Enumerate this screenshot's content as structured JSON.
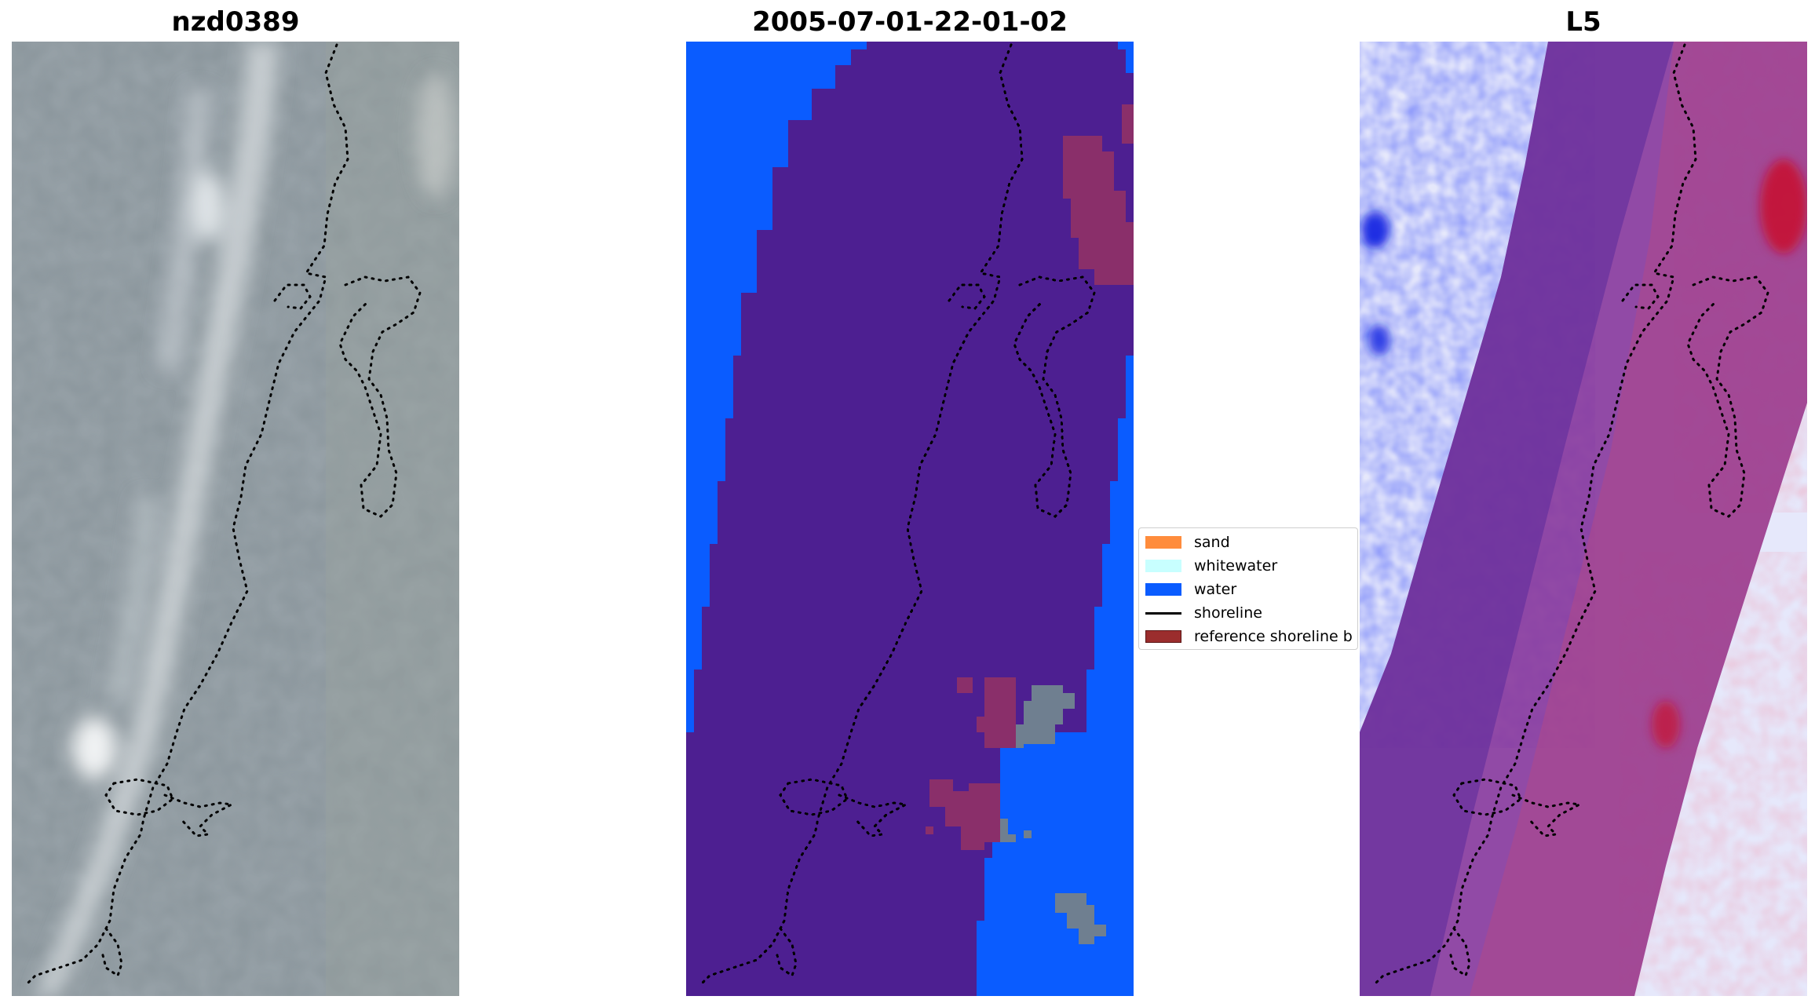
{
  "panels": {
    "left": {
      "title": "nzd0389"
    },
    "middle": {
      "title": "2005-07-01-22-01-02"
    },
    "right": {
      "title": "L5"
    }
  },
  "legend": {
    "items": [
      {
        "label": "sand",
        "color": "#ff8c3c",
        "kind": "patch"
      },
      {
        "label": "whitewater",
        "color": "#c8ffff",
        "kind": "patch"
      },
      {
        "label": "water",
        "color": "#0a5cff",
        "kind": "patch"
      },
      {
        "label": "shoreline",
        "color": "#000000",
        "kind": "line"
      },
      {
        "label": "reference shoreline b",
        "color": "#9b2d2d",
        "kind": "patch"
      }
    ]
  },
  "colors": {
    "water": "#0a5cff",
    "land_overlay": "#4d1f91",
    "reference_buffer": "#9b2d2d",
    "unclassified": "#6f7f90",
    "rgb_background": "#8a959b",
    "index_negative": "#2a32e8",
    "index_positive": "#d0102e"
  }
}
